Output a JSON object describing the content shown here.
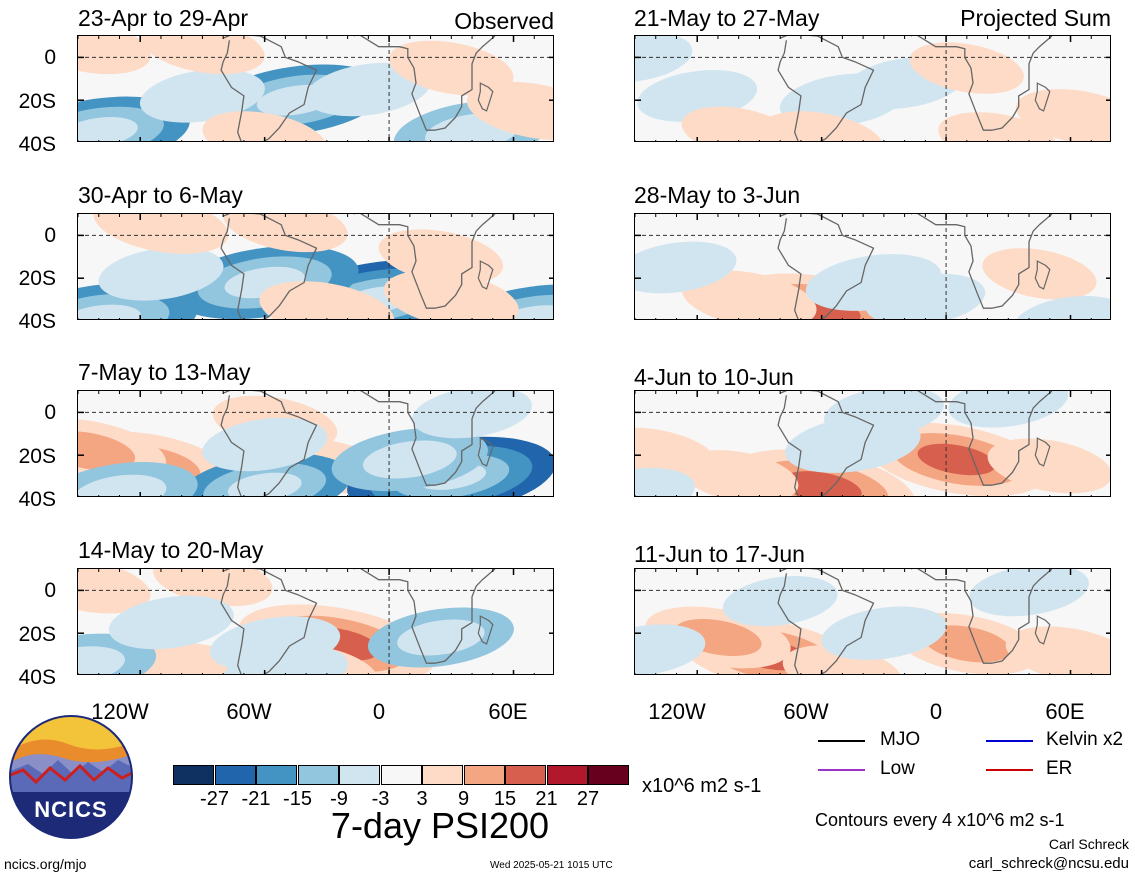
{
  "panels": [
    {
      "id": "p1",
      "title": "23-Apr to 29-Apr",
      "corner": "Observed"
    },
    {
      "id": "p2",
      "title": "30-Apr to 6-May",
      "corner": ""
    },
    {
      "id": "p3",
      "title": "7-May to 13-May",
      "corner": ""
    },
    {
      "id": "p4",
      "title": "14-May to 20-May",
      "corner": ""
    },
    {
      "id": "p5",
      "title": "21-May to 27-May",
      "corner": "Projected Sum"
    },
    {
      "id": "p6",
      "title": "28-May to 3-Jun",
      "corner": ""
    },
    {
      "id": "p7",
      "title": "4-Jun to 10-Jun",
      "corner": ""
    },
    {
      "id": "p8",
      "title": "11-Jun to 17-Jun",
      "corner": ""
    }
  ],
  "axes": {
    "y_ticks": [
      "0",
      "20S",
      "40S"
    ],
    "x_ticks": [
      "120W",
      "60W",
      "0",
      "60E"
    ]
  },
  "colorbar": {
    "colors": [
      "#0e3161",
      "#2166ac",
      "#4393c3",
      "#92c5de",
      "#d1e5f0",
      "#f7f7f7",
      "#fddbc7",
      "#f4a582",
      "#d6604d",
      "#b2182b",
      "#67001f"
    ],
    "labels": [
      "-27",
      "-21",
      "-15",
      "-9",
      "-3",
      "3",
      "9",
      "15",
      "21",
      "27"
    ],
    "units": "x10^6 m2 s-1"
  },
  "main_title": "7-day PSI200",
  "legend": [
    {
      "label": "MJO",
      "color": "#000000"
    },
    {
      "label": "Kelvin x2",
      "color": "#0000cc"
    },
    {
      "label": "Low",
      "color": "#9933cc"
    },
    {
      "label": "ER",
      "color": "#cc0000"
    }
  ],
  "contours_note": "Contours every 4 x10^6 m2 s-1",
  "author": "Carl Schreck",
  "email": "carl_schreck@ncsu.edu",
  "site": "ncics.org/mjo",
  "timestamp": "Wed 2025-05-21 1015 UTC",
  "logo_text": "NCICS",
  "chart_data": {
    "type": "heatmap",
    "title": "7-day PSI200",
    "variable": "PSI200",
    "units": "x10^6 m2 s-1",
    "color_levels": [
      -27,
      -21,
      -15,
      -9,
      -3,
      3,
      9,
      15,
      21,
      27
    ],
    "x_ticks": [
      "120W",
      "60W",
      "0",
      "60E"
    ],
    "y_ticks": [
      "0",
      "20S",
      "40S"
    ],
    "lon_range": [
      -150,
      80
    ],
    "lat_range": [
      -40,
      10
    ],
    "panels": [
      {
        "title": "23-Apr to 29-Apr",
        "group": "Observed",
        "anomalies": [
          {
            "lon": -45,
            "lat": -20,
            "value": -17
          },
          {
            "lon": -140,
            "lat": -35,
            "value": -17
          },
          {
            "lon": 40,
            "lat": -35,
            "value": -12
          },
          {
            "lon": -90,
            "lat": -18,
            "value": -6
          },
          {
            "lon": -10,
            "lat": -15,
            "value": -6
          },
          {
            "lon": 70,
            "lat": -25,
            "value": 8
          },
          {
            "lon": -145,
            "lat": 5,
            "value": 6
          },
          {
            "lon": -90,
            "lat": 5,
            "value": 6
          },
          {
            "lon": 30,
            "lat": -5,
            "value": 6
          },
          {
            "lon": -60,
            "lat": -38,
            "value": 6
          }
        ]
      },
      {
        "title": "30-Apr to 6-May",
        "group": "Observed",
        "anomalies": [
          {
            "lon": -5,
            "lat": -30,
            "value": -22
          },
          {
            "lon": -60,
            "lat": -22,
            "value": -18
          },
          {
            "lon": -140,
            "lat": -40,
            "value": -20
          },
          {
            "lon": 70,
            "lat": -40,
            "value": -18
          },
          {
            "lon": -110,
            "lat": -18,
            "value": -6
          },
          {
            "lon": -30,
            "lat": -35,
            "value": 8
          },
          {
            "lon": 30,
            "lat": -30,
            "value": 8
          },
          {
            "lon": -110,
            "lat": 5,
            "value": 8
          },
          {
            "lon": -50,
            "lat": 5,
            "value": 6
          },
          {
            "lon": 25,
            "lat": -10,
            "value": 6
          }
        ]
      },
      {
        "title": "7-May to 13-May",
        "group": "Observed",
        "anomalies": [
          {
            "lon": -115,
            "lat": -25,
            "value": 14
          },
          {
            "lon": -145,
            "lat": -18,
            "value": 12
          },
          {
            "lon": -55,
            "lat": -5,
            "value": 6
          },
          {
            "lon": -30,
            "lat": -25,
            "value": 6
          },
          {
            "lon": 30,
            "lat": -30,
            "value": -22
          },
          {
            "lon": -60,
            "lat": -35,
            "value": -15
          },
          {
            "lon": -130,
            "lat": -38,
            "value": -12
          },
          {
            "lon": 10,
            "lat": -22,
            "value": -12
          },
          {
            "lon": 40,
            "lat": 0,
            "value": -5
          },
          {
            "lon": -60,
            "lat": -15,
            "value": -6
          }
        ]
      },
      {
        "title": "14-May to 20-May",
        "group": "Observed",
        "anomalies": [
          {
            "lon": -25,
            "lat": -25,
            "value": 20
          },
          {
            "lon": -35,
            "lat": -38,
            "value": 6
          },
          {
            "lon": -90,
            "lat": -38,
            "value": 8
          },
          {
            "lon": -145,
            "lat": 2,
            "value": 6
          },
          {
            "lon": -85,
            "lat": 5,
            "value": 5
          },
          {
            "lon": 25,
            "lat": -22,
            "value": -10
          },
          {
            "lon": -150,
            "lat": -35,
            "value": -12
          },
          {
            "lon": -105,
            "lat": -15,
            "value": -6
          },
          {
            "lon": -55,
            "lat": -25,
            "value": -7
          },
          {
            "lon": -50,
            "lat": -38,
            "value": -6
          }
        ]
      },
      {
        "title": "21-May to 27-May",
        "group": "Projected Sum",
        "anomalies": [
          {
            "lon": -50,
            "lat": -20,
            "value": -6
          },
          {
            "lon": -20,
            "lat": -12,
            "value": -5
          },
          {
            "lon": -120,
            "lat": -18,
            "value": -5
          },
          {
            "lon": -150,
            "lat": 0,
            "value": -4
          },
          {
            "lon": -60,
            "lat": -38,
            "value": 6
          },
          {
            "lon": 65,
            "lat": -28,
            "value": 7
          },
          {
            "lon": 25,
            "lat": -38,
            "value": 5
          },
          {
            "lon": 10,
            "lat": -5,
            "value": 4
          },
          {
            "lon": -100,
            "lat": -35,
            "value": 4
          }
        ]
      },
      {
        "title": "28-May to 3-Jun",
        "group": "Projected Sum",
        "anomalies": [
          {
            "lon": -60,
            "lat": -35,
            "value": 17
          },
          {
            "lon": -95,
            "lat": -30,
            "value": 8
          },
          {
            "lon": 45,
            "lat": -18,
            "value": 4
          },
          {
            "lon": -35,
            "lat": -22,
            "value": -8
          },
          {
            "lon": -130,
            "lat": -15,
            "value": -5
          },
          {
            "lon": -10,
            "lat": -30,
            "value": -5
          },
          {
            "lon": 60,
            "lat": -40,
            "value": -4
          }
        ]
      },
      {
        "title": "4-Jun to 10-Jun",
        "group": "Projected Sum",
        "anomalies": [
          {
            "lon": -60,
            "lat": -35,
            "value": 18
          },
          {
            "lon": 5,
            "lat": -22,
            "value": 17
          },
          {
            "lon": -140,
            "lat": -20,
            "value": 6
          },
          {
            "lon": 50,
            "lat": -25,
            "value": 6
          },
          {
            "lon": -100,
            "lat": -30,
            "value": 5
          },
          {
            "lon": -45,
            "lat": -15,
            "value": -8
          },
          {
            "lon": -150,
            "lat": -38,
            "value": -5
          },
          {
            "lon": -30,
            "lat": 0,
            "value": -5
          },
          {
            "lon": 30,
            "lat": 5,
            "value": -5
          }
        ]
      },
      {
        "title": "11-Jun to 17-Jun",
        "group": "Projected Sum",
        "anomalies": [
          {
            "lon": -85,
            "lat": -30,
            "value": 17
          },
          {
            "lon": -110,
            "lat": -22,
            "value": 10
          },
          {
            "lon": 10,
            "lat": -25,
            "value": 10
          },
          {
            "lon": 60,
            "lat": -30,
            "value": 7
          },
          {
            "lon": -50,
            "lat": -38,
            "value": 5
          },
          {
            "lon": -30,
            "lat": -20,
            "value": -6
          },
          {
            "lon": -145,
            "lat": -28,
            "value": -5
          },
          {
            "lon": 40,
            "lat": 0,
            "value": -5
          },
          {
            "lon": -80,
            "lat": -5,
            "value": -4
          }
        ]
      }
    ]
  }
}
